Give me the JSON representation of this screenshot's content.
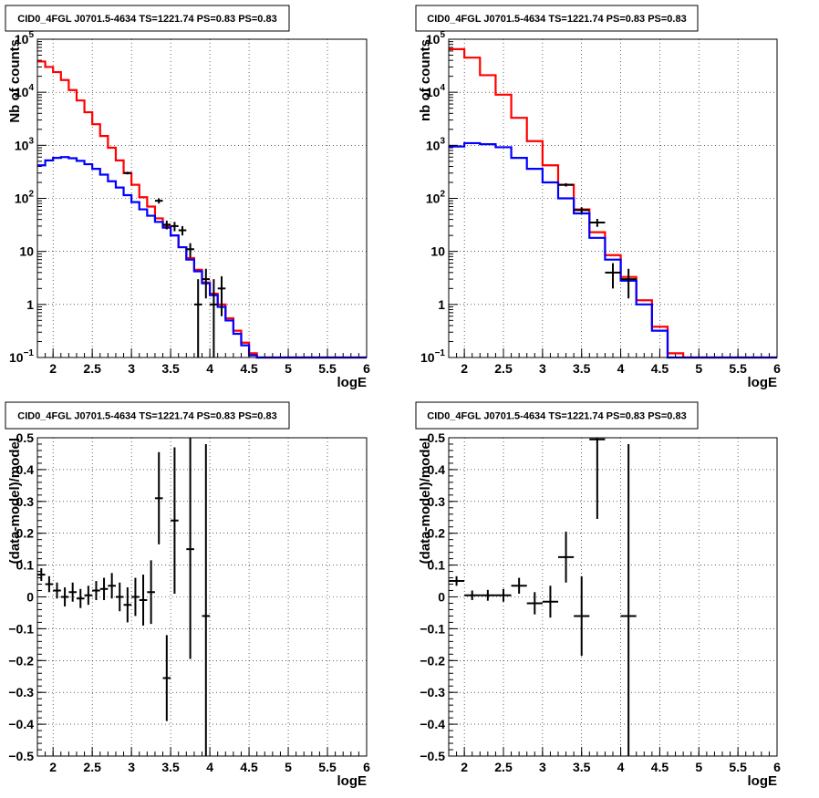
{
  "chart_data": [
    {
      "type": "line",
      "panel": "top-left",
      "title": "CID0_4FGL J0701.5-4634 TS=1221.74 PS=0.83 PS=0.83",
      "xlabel": "logE",
      "ylabel": "Nb of counts",
      "xlim": [
        1.8,
        6.0
      ],
      "ylim": [
        0.1,
        100000
      ],
      "yscale": "log",
      "grid": true,
      "xticks": [
        "2",
        "2.5",
        "3",
        "3.5",
        "4",
        "4.5",
        "5",
        "5.5",
        "6"
      ],
      "yticks": [
        {
          "value": 0.1,
          "base": "10",
          "exp": "−1"
        },
        {
          "value": 1,
          "label": "1"
        },
        {
          "value": 10,
          "label": "10"
        },
        {
          "value": 100,
          "base": "10",
          "exp": "2"
        },
        {
          "value": 1000,
          "base": "10",
          "exp": "3"
        },
        {
          "value": 10000,
          "base": "10",
          "exp": "4"
        },
        {
          "value": 100000,
          "base": "10",
          "exp": "5"
        }
      ],
      "bin_edges": [
        1.8,
        1.9,
        2.0,
        2.1,
        2.2,
        2.3,
        2.4,
        2.5,
        2.6,
        2.7,
        2.8,
        2.9,
        3.0,
        3.1,
        3.2,
        3.3,
        3.4,
        3.5,
        3.6,
        3.7,
        3.8,
        3.9,
        4.0,
        4.1,
        4.2,
        4.3,
        4.4,
        4.5,
        4.6,
        6.0
      ],
      "series": [
        {
          "color": "#ff0000",
          "style": "step",
          "values": [
            38000,
            30000,
            24000,
            17000,
            11000,
            7000,
            4200,
            2500,
            1500,
            900,
            520,
            300,
            180,
            105,
            70,
            42,
            30,
            20,
            12,
            7.5,
            4.5,
            2.6,
            1.6,
            1.0,
            0.55,
            0.32,
            0.19,
            0.12,
            0.1
          ]
        },
        {
          "color": "#0000ff",
          "style": "step",
          "values": [
            420,
            520,
            580,
            600,
            570,
            510,
            440,
            360,
            280,
            210,
            160,
            115,
            85,
            62,
            47,
            36,
            28,
            20,
            12,
            7.0,
            4.2,
            2.5,
            1.5,
            0.9,
            0.5,
            0.28,
            0.17,
            0.11,
            0.1
          ]
        }
      ],
      "points": [
        {
          "x": 2.95,
          "y": 300,
          "xerr": 0.05,
          "ylo": 283,
          "yhi": 317
        },
        {
          "x": 3.35,
          "y": 90,
          "xerr": 0.05,
          "ylo": 80,
          "yhi": 100
        },
        {
          "x": 3.45,
          "y": 32,
          "xerr": 0.05,
          "ylo": 26,
          "yhi": 38
        },
        {
          "x": 3.55,
          "y": 30,
          "xerr": 0.05,
          "ylo": 24,
          "yhi": 36
        },
        {
          "x": 3.65,
          "y": 25,
          "xerr": 0.05,
          "ylo": 20,
          "yhi": 30
        },
        {
          "x": 3.75,
          "y": 11,
          "xerr": 0.05,
          "ylo": 7.7,
          "yhi": 14.3
        },
        {
          "x": 3.85,
          "y": 1,
          "xerr": 0.05,
          "ylo": 0.1,
          "yhi": 3
        },
        {
          "x": 3.95,
          "y": 3,
          "xerr": 0.05,
          "ylo": 1.3,
          "yhi": 4.7
        },
        {
          "x": 4.05,
          "y": 1,
          "xerr": 0.05,
          "ylo": 0.1,
          "yhi": 3
        },
        {
          "x": 4.15,
          "y": 2,
          "xerr": 0.05,
          "ylo": 0.6,
          "yhi": 3.4
        }
      ]
    },
    {
      "type": "line",
      "panel": "top-right",
      "title": "CID0_4FGL J0701.5-4634 TS=1221.74 PS=0.83 PS=0.83",
      "xlabel": "logE",
      "ylabel": "nb of counts",
      "xlim": [
        1.8,
        6.0
      ],
      "ylim": [
        0.1,
        100000
      ],
      "yscale": "log",
      "grid": true,
      "xticks": [
        "2",
        "2.5",
        "3",
        "3.5",
        "4",
        "4.5",
        "5",
        "5.5",
        "6"
      ],
      "yticks": [
        {
          "value": 0.1,
          "base": "10",
          "exp": "−1"
        },
        {
          "value": 1,
          "label": "1"
        },
        {
          "value": 10,
          "label": "10"
        },
        {
          "value": 100,
          "base": "10",
          "exp": "2"
        },
        {
          "value": 1000,
          "base": "10",
          "exp": "3"
        },
        {
          "value": 10000,
          "base": "10",
          "exp": "4"
        },
        {
          "value": 100000,
          "base": "10",
          "exp": "5"
        }
      ],
      "bin_edges": [
        1.8,
        2.0,
        2.2,
        2.4,
        2.6,
        2.8,
        3.0,
        3.2,
        3.4,
        3.6,
        3.8,
        4.0,
        4.2,
        4.4,
        4.6,
        4.8,
        6.0
      ],
      "series": [
        {
          "color": "#ff0000",
          "style": "step",
          "values": [
            65000,
            45000,
            21000,
            9000,
            3300,
            1200,
            420,
            180,
            62,
            23,
            8.5,
            3.3,
            1.2,
            0.38,
            0.12,
            0.1
          ]
        },
        {
          "color": "#0000ff",
          "style": "step",
          "values": [
            950,
            1100,
            1050,
            920,
            580,
            360,
            200,
            100,
            52,
            18,
            7.0,
            2.8,
            1.0,
            0.32,
            0.1,
            0.1
          ]
        }
      ],
      "points": [
        {
          "x": 3.3,
          "y": 180,
          "xerr": 0.1,
          "ylo": 167,
          "yhi": 193
        },
        {
          "x": 3.5,
          "y": 60,
          "xerr": 0.1,
          "ylo": 52,
          "yhi": 68
        },
        {
          "x": 3.7,
          "y": 35,
          "xerr": 0.1,
          "ylo": 29,
          "yhi": 41
        },
        {
          "x": 3.9,
          "y": 4,
          "xerr": 0.1,
          "ylo": 2,
          "yhi": 6
        },
        {
          "x": 4.1,
          "y": 3,
          "xerr": 0.1,
          "ylo": 1.3,
          "yhi": 4.7
        }
      ]
    },
    {
      "type": "scatter",
      "panel": "bottom-left",
      "title": "CID0_4FGL J0701.5-4634 TS=1221.74 PS=0.83 PS=0.83",
      "xlabel": "logE",
      "ylabel": "(data-model)/model",
      "xlim": [
        1.8,
        6.0
      ],
      "ylim": [
        -0.5,
        0.5
      ],
      "yscale": "linear",
      "grid": true,
      "xticks": [
        "2",
        "2.5",
        "3",
        "3.5",
        "4",
        "4.5",
        "5",
        "5.5",
        "6"
      ],
      "yticks": [
        {
          "value": -0.5,
          "label": "−0.5"
        },
        {
          "value": -0.4,
          "label": "−0.4"
        },
        {
          "value": -0.3,
          "label": "−0.3"
        },
        {
          "value": -0.2,
          "label": "−0.2"
        },
        {
          "value": -0.1,
          "label": "−0.1"
        },
        {
          "value": 0,
          "label": "0"
        },
        {
          "value": 0.1,
          "label": "0.1"
        },
        {
          "value": 0.2,
          "label": "0.2"
        },
        {
          "value": 0.3,
          "label": "0.3"
        },
        {
          "value": 0.4,
          "label": "0.4"
        },
        {
          "value": 0.5,
          "label": "0.5"
        }
      ],
      "points": [
        {
          "x": 1.85,
          "y": 0.07,
          "xerr": 0.05,
          "ylo": 0.05,
          "yhi": 0.09
        },
        {
          "x": 1.95,
          "y": 0.04,
          "xerr": 0.05,
          "ylo": 0.015,
          "yhi": 0.065
        },
        {
          "x": 2.05,
          "y": 0.02,
          "xerr": 0.05,
          "ylo": -0.005,
          "yhi": 0.045
        },
        {
          "x": 2.15,
          "y": 0.0,
          "xerr": 0.05,
          "ylo": -0.03,
          "yhi": 0.03
        },
        {
          "x": 2.25,
          "y": 0.015,
          "xerr": 0.05,
          "ylo": -0.015,
          "yhi": 0.045
        },
        {
          "x": 2.35,
          "y": -0.005,
          "xerr": 0.05,
          "ylo": -0.035,
          "yhi": 0.025
        },
        {
          "x": 2.45,
          "y": 0.005,
          "xerr": 0.05,
          "ylo": -0.025,
          "yhi": 0.035
        },
        {
          "x": 2.55,
          "y": 0.02,
          "xerr": 0.05,
          "ylo": -0.01,
          "yhi": 0.05
        },
        {
          "x": 2.65,
          "y": 0.025,
          "xerr": 0.05,
          "ylo": -0.01,
          "yhi": 0.06
        },
        {
          "x": 2.75,
          "y": 0.035,
          "xerr": 0.05,
          "ylo": -0.005,
          "yhi": 0.075
        },
        {
          "x": 2.85,
          "y": 0.0,
          "xerr": 0.05,
          "ylo": -0.045,
          "yhi": 0.045
        },
        {
          "x": 2.95,
          "y": -0.025,
          "xerr": 0.05,
          "ylo": -0.08,
          "yhi": 0.03
        },
        {
          "x": 3.05,
          "y": 0.0,
          "xerr": 0.05,
          "ylo": -0.06,
          "yhi": 0.06
        },
        {
          "x": 3.15,
          "y": -0.01,
          "xerr": 0.05,
          "ylo": -0.09,
          "yhi": 0.07
        },
        {
          "x": 3.25,
          "y": 0.015,
          "xerr": 0.05,
          "ylo": -0.085,
          "yhi": 0.115
        },
        {
          "x": 3.35,
          "y": 0.31,
          "xerr": 0.05,
          "ylo": 0.165,
          "yhi": 0.455
        },
        {
          "x": 3.45,
          "y": -0.255,
          "xerr": 0.05,
          "ylo": -0.39,
          "yhi": -0.12
        },
        {
          "x": 3.55,
          "y": 0.24,
          "xerr": 0.05,
          "ylo": 0.01,
          "yhi": 0.47
        },
        {
          "x": 3.75,
          "y": 0.15,
          "xerr": 0.05,
          "ylo": -0.195,
          "yhi": 0.5
        },
        {
          "x": 3.95,
          "y": -0.06,
          "xerr": 0.05,
          "ylo": -0.5,
          "yhi": 0.48
        }
      ]
    },
    {
      "type": "scatter",
      "panel": "bottom-right",
      "title": "CID0_4FGL J0701.5-4634 TS=1221.74 PS=0.83 PS=0.83",
      "xlabel": "logE",
      "ylabel": "(data-model)/model",
      "xlim": [
        1.8,
        6.0
      ],
      "ylim": [
        -0.5,
        0.5
      ],
      "yscale": "linear",
      "grid": true,
      "xticks": [
        "2",
        "2.5",
        "3",
        "3.5",
        "4",
        "4.5",
        "5",
        "5.5",
        "6"
      ],
      "yticks": [
        {
          "value": -0.5,
          "label": "−0.5"
        },
        {
          "value": -0.4,
          "label": "−0.4"
        },
        {
          "value": -0.3,
          "label": "−0.3"
        },
        {
          "value": -0.2,
          "label": "−0.2"
        },
        {
          "value": -0.1,
          "label": "−0.1"
        },
        {
          "value": 0,
          "label": "0"
        },
        {
          "value": 0.1,
          "label": "0.1"
        },
        {
          "value": 0.2,
          "label": "0.2"
        },
        {
          "value": 0.3,
          "label": "0.3"
        },
        {
          "value": 0.4,
          "label": "0.4"
        },
        {
          "value": 0.5,
          "label": "0.5"
        }
      ],
      "points": [
        {
          "x": 1.9,
          "y": 0.05,
          "xerr": 0.1,
          "ylo": 0.035,
          "yhi": 0.065
        },
        {
          "x": 2.1,
          "y": 0.005,
          "xerr": 0.1,
          "ylo": -0.01,
          "yhi": 0.02
        },
        {
          "x": 2.3,
          "y": 0.005,
          "xerr": 0.1,
          "ylo": -0.012,
          "yhi": 0.022
        },
        {
          "x": 2.5,
          "y": 0.005,
          "xerr": 0.1,
          "ylo": -0.015,
          "yhi": 0.025
        },
        {
          "x": 2.7,
          "y": 0.035,
          "xerr": 0.1,
          "ylo": 0.01,
          "yhi": 0.06
        },
        {
          "x": 2.9,
          "y": -0.02,
          "xerr": 0.1,
          "ylo": -0.055,
          "yhi": 0.015
        },
        {
          "x": 3.1,
          "y": -0.015,
          "xerr": 0.1,
          "ylo": -0.065,
          "yhi": 0.035
        },
        {
          "x": 3.3,
          "y": 0.125,
          "xerr": 0.1,
          "ylo": 0.045,
          "yhi": 0.205
        },
        {
          "x": 3.5,
          "y": -0.06,
          "xerr": 0.1,
          "ylo": -0.185,
          "yhi": 0.065
        },
        {
          "x": 3.7,
          "y": 0.495,
          "xerr": 0.1,
          "ylo": 0.245,
          "yhi": 0.5
        },
        {
          "x": 4.1,
          "y": -0.06,
          "xerr": 0.1,
          "ylo": -0.5,
          "yhi": 0.48
        }
      ]
    }
  ]
}
